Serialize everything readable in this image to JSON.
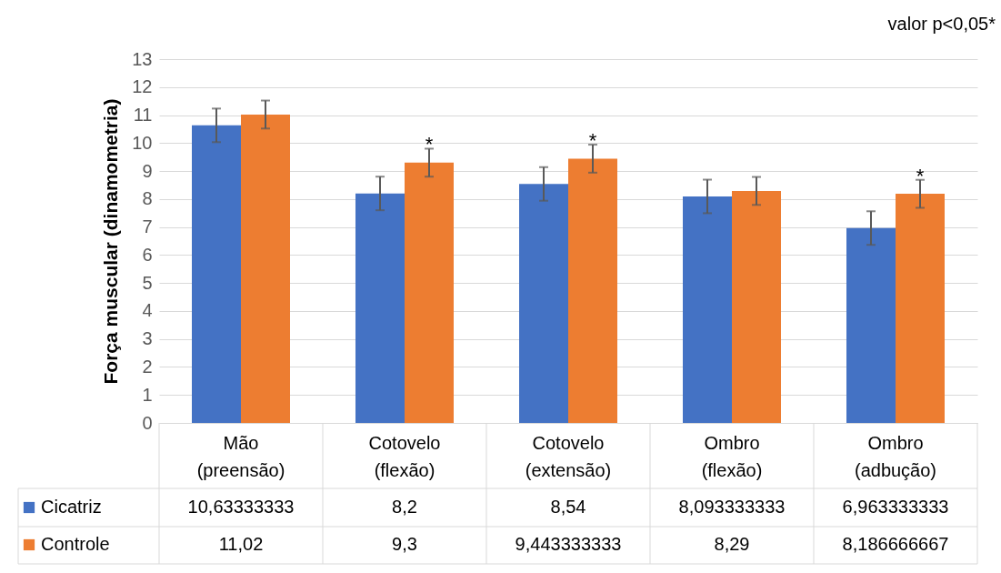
{
  "chart_data": {
    "type": "bar",
    "title": "valor p<0,05*",
    "ylabel": "Força muscular (dinamometria)",
    "categories": [
      "Mão (preensão)",
      "Cotovelo (flexão)",
      "Cotovelo (extensão)",
      "Ombro (flexão)",
      "Ombro (adbução)"
    ],
    "series": [
      {
        "name": "Cicatriz",
        "color": "#4472c4",
        "values": [
          10.63333333,
          8.2,
          8.54,
          8.093333333,
          6.963333333
        ],
        "errors": [
          0.6,
          0.6,
          0.6,
          0.6,
          0.6
        ],
        "value_labels": [
          "10,63333333",
          "8,2",
          "8,54",
          "8,093333333",
          "6,963333333"
        ]
      },
      {
        "name": "Controle",
        "color": "#ed7d31",
        "values": [
          11.02,
          9.3,
          9.443333333,
          8.29,
          8.186666667
        ],
        "errors": [
          0.5,
          0.5,
          0.5,
          0.5,
          0.5
        ],
        "value_labels": [
          "11,02",
          "9,3",
          "9,443333333",
          "8,29",
          "8,186666667"
        ]
      }
    ],
    "annotations": [
      {
        "text": "*",
        "x": "Cotovelo (flexão)",
        "y": 9.3
      },
      {
        "text": "*",
        "x": "Cotovelo (extensão)",
        "y": 9.443333333
      },
      {
        "text": "*",
        "x": "Ombro (adbução)",
        "y": 8.186666667
      }
    ],
    "ylim": [
      0,
      13
    ],
    "yticks": [
      0,
      1,
      2,
      3,
      4,
      5,
      6,
      7,
      8,
      9,
      10,
      11,
      12,
      13
    ],
    "grid": "y",
    "legend": "bottom left"
  }
}
